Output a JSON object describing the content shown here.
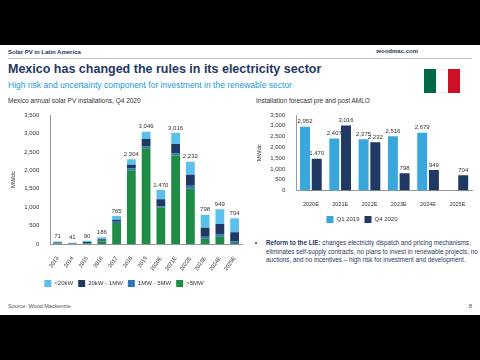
{
  "header": {
    "section": "Solar PV in Latin America",
    "logo": "woodmac.com",
    "title": "Mexico has changed the rules in its electricity sector",
    "subtitle": "High risk and uncertainty component for investment in the renewable sector"
  },
  "chart_data": [
    {
      "type": "bar",
      "title": "Mexico annual solar PV installations, Q4 2020",
      "y_label": "MWdc",
      "stacked": true,
      "grid": false,
      "legend": "bottom",
      "data_labels": true,
      "categories": [
        "2013",
        "2014",
        "2015",
        "2016",
        "2017",
        "2018",
        "2019",
        "2020E",
        "2021E",
        "2022E",
        "2023E",
        "2024E",
        "2025E"
      ],
      "series": [
        {
          "name": "<20kW",
          "color": "#5bc0eb",
          "values": [
            25,
            20,
            30,
            50,
            100,
            150,
            200,
            250,
            300,
            350,
            350,
            400,
            380
          ]
        },
        {
          "name": "20kW - 1MW",
          "color": "#1f3864",
          "values": [
            20,
            10,
            25,
            40,
            60,
            100,
            200,
            200,
            250,
            300,
            250,
            280,
            250
          ]
        },
        {
          "name": "1MW - 5MW",
          "color": "#2e75b6",
          "values": [
            6,
            5,
            10,
            16,
            30,
            54,
            49,
            20,
            66,
            82,
            48,
            69,
            44
          ]
        },
        {
          "name": ">5MW",
          "color": "#1e8c45",
          "values": [
            20,
            6,
            25,
            80,
            575,
            2000,
            2600,
            1000,
            2400,
            1500,
            150,
            200,
            30
          ]
        }
      ],
      "total_labels": [
        "71",
        "41",
        "90",
        "186",
        "765",
        "2,304",
        "3,049",
        "1,470",
        "3,016",
        "2,232",
        "798",
        "949",
        "704"
      ],
      "ylim": [
        0,
        3500
      ],
      "yticks": [
        0,
        500,
        {
          "value": 1000,
          "label": "1,000"
        },
        {
          "value": 1500,
          "label": "1,500"
        },
        {
          "value": 2000,
          "label": "2,000"
        },
        {
          "value": 2500,
          "label": "2,500"
        },
        {
          "value": 3000,
          "label": "3,000"
        },
        {
          "value": 3500,
          "label": "3,500"
        }
      ]
    },
    {
      "type": "bar",
      "title": "Installation forecast pre and post AMLO",
      "y_label": "MWdc",
      "stacked": false,
      "grid": false,
      "legend": "bottom",
      "data_labels": true,
      "categories": [
        "2020E",
        "2021E",
        "2022E",
        "2023E",
        "2024E",
        "2025E"
      ],
      "series": [
        {
          "name": "Q1 2019",
          "color": "#3aa7dc",
          "values": [
            2952,
            2407,
            2375,
            2516,
            2679,
            null
          ],
          "value_labels": [
            "2,952",
            "2,407",
            "2,375",
            "2,516",
            "2,679",
            null
          ]
        },
        {
          "name": "Q4 2020",
          "color": "#1f3864",
          "values": [
            1470,
            3016,
            2232,
            798,
            949,
            704
          ],
          "value_labels": [
            "1,470",
            "3,016",
            "2,232",
            "798",
            "949",
            "704"
          ]
        }
      ],
      "ylim": [
        0,
        3500
      ],
      "yticks": [
        0,
        500,
        {
          "value": 1000,
          "label": "1,000"
        },
        {
          "value": 1500,
          "label": "1,500"
        },
        {
          "value": 2000,
          "label": "2,000"
        },
        {
          "value": 2500,
          "label": "2,500"
        },
        {
          "value": 3000,
          "label": "3,000"
        },
        {
          "value": 3500,
          "label": "3,500"
        }
      ]
    }
  ],
  "bullets": [
    {
      "lead": "Reform to the LIE:",
      "text": "changes electricity dispatch and pricing mechanisms, eliminates self-supply contracts, no plans to invest in renewable projects, no auctions, and no incentives – high risk for investment and development."
    }
  ],
  "footer": {
    "source": "Source: Wood Mackenzie",
    "page": 8
  }
}
